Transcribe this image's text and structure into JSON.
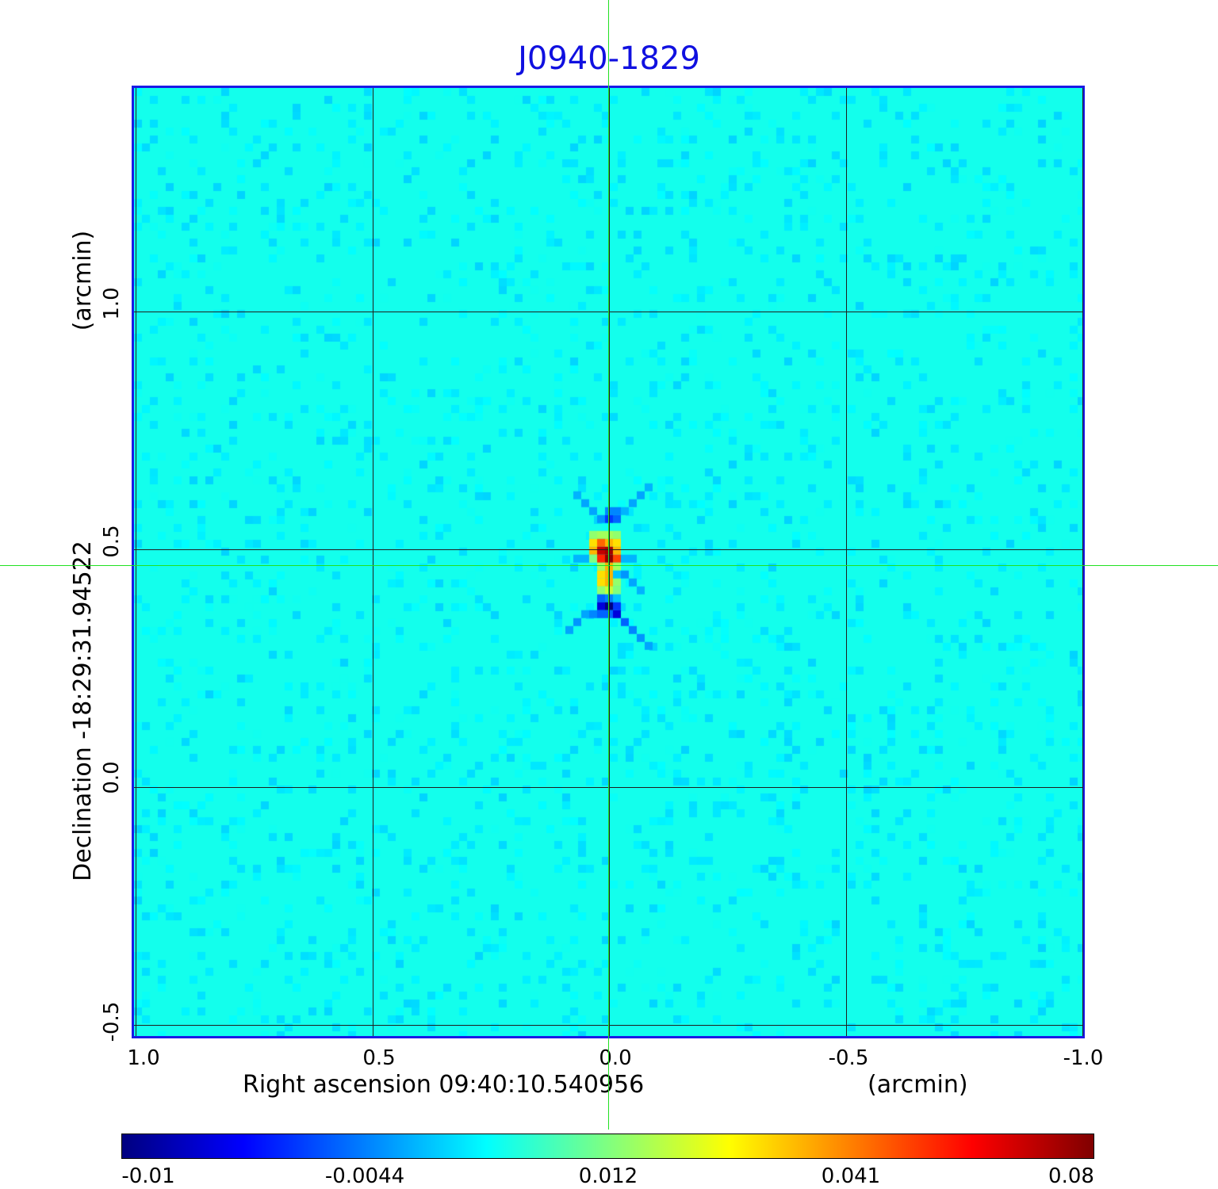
{
  "chart_data": {
    "type": "heatmap",
    "title": "J0940-1829",
    "xlabel": "Right ascension  09:40:10.540956",
    "xunit": "(arcmin)",
    "ylabel": "Declination  -18:29:31.94522",
    "yunit": "(arcmin)",
    "xlim": [
      1.0,
      -1.0
    ],
    "ylim": [
      -0.53,
      1.47
    ],
    "x_ticks": [
      "1.0",
      "0.5",
      "0.0",
      "-0.5",
      "-1.0"
    ],
    "x_tick_values": [
      1.0,
      0.5,
      0.0,
      -0.5,
      -1.0
    ],
    "y_ticks": [
      "-0.5",
      "0.0",
      "0.5",
      "1.0"
    ],
    "y_tick_values": [
      -0.5,
      0.0,
      0.5,
      1.0
    ],
    "grid": true,
    "crosshair": {
      "x": 0.0,
      "y": 0.467,
      "color": "#22e022"
    },
    "background_value": 0.005,
    "pixel_size_arcsec": 1,
    "source_center": {
      "x": 0.0,
      "y": 0.467
    },
    "pixels": [
      [
        0,
        -6,
        -0.004
      ],
      [
        1,
        -6,
        -0.004
      ],
      [
        -1,
        -5,
        -0.003
      ],
      [
        0,
        -5,
        -0.006
      ],
      [
        1,
        -5,
        -0.005
      ],
      [
        -2,
        -3,
        0.014
      ],
      [
        -1,
        -3,
        0.016
      ],
      [
        0,
        -3,
        0.016
      ],
      [
        1,
        -3,
        0.014
      ],
      [
        -2,
        -2,
        0.03
      ],
      [
        -1,
        -2,
        0.045
      ],
      [
        0,
        -2,
        0.035
      ],
      [
        1,
        -2,
        0.03
      ],
      [
        -2,
        -1,
        0.035
      ],
      [
        -1,
        -1,
        0.07
      ],
      [
        0,
        -1,
        0.075
      ],
      [
        1,
        -1,
        0.035
      ],
      [
        -2,
        0,
        0.012
      ],
      [
        -1,
        0,
        0.055
      ],
      [
        0,
        0,
        0.078
      ],
      [
        1,
        0,
        0.05
      ],
      [
        -1,
        1,
        0.016
      ],
      [
        0,
        1,
        0.035
      ],
      [
        1,
        1,
        0.016
      ],
      [
        -1,
        2,
        0.03
      ],
      [
        0,
        2,
        0.035
      ],
      [
        1,
        2,
        0.0
      ],
      [
        -1,
        3,
        0.03
      ],
      [
        0,
        3,
        0.035
      ],
      [
        1,
        3,
        0.014
      ],
      [
        -1,
        4,
        0.014
      ],
      [
        0,
        4,
        0.02
      ],
      [
        1,
        4,
        0.012
      ],
      [
        -1,
        5,
        -0.005
      ],
      [
        0,
        5,
        -0.004
      ],
      [
        1,
        5,
        0.0
      ],
      [
        -1,
        6,
        -0.008
      ],
      [
        0,
        6,
        -0.01
      ],
      [
        1,
        6,
        -0.006
      ],
      [
        -2,
        7,
        -0.004
      ],
      [
        -1,
        7,
        -0.005
      ],
      [
        0,
        7,
        -0.005
      ],
      [
        1,
        7,
        -0.008
      ],
      [
        -3,
        7,
        -0.002
      ],
      [
        -4,
        8,
        -0.003
      ],
      [
        -5,
        9,
        -0.002
      ],
      [
        2,
        8,
        -0.005
      ],
      [
        3,
        9,
        -0.004
      ],
      [
        4,
        10,
        -0.003
      ],
      [
        5,
        11,
        -0.002
      ],
      [
        -2,
        -6,
        -0.002
      ],
      [
        -3,
        -7,
        -0.002
      ],
      [
        -4,
        -8,
        -0.001
      ],
      [
        2,
        -6,
        -0.001
      ],
      [
        3,
        -7,
        -0.002
      ],
      [
        4,
        -8,
        -0.002
      ],
      [
        5,
        -9,
        -0.001
      ],
      [
        2,
        2,
        -0.003
      ],
      [
        3,
        3,
        -0.002
      ],
      [
        4,
        4,
        -0.001
      ],
      [
        -3,
        0,
        -0.001
      ],
      [
        -4,
        0,
        -0.001
      ],
      [
        2,
        0,
        -0.001
      ],
      [
        3,
        0,
        -0.001
      ]
    ],
    "colorbar": {
      "ticks": [
        "-0.01",
        "-0.0044",
        "0.012",
        "0.041",
        "0.08"
      ],
      "tick_values": [
        -0.01,
        -0.0044,
        0.012,
        0.041,
        0.08
      ],
      "range": [
        -0.01,
        0.08
      ],
      "colormap": "jet",
      "border_color": "#1a1ae6"
    }
  }
}
